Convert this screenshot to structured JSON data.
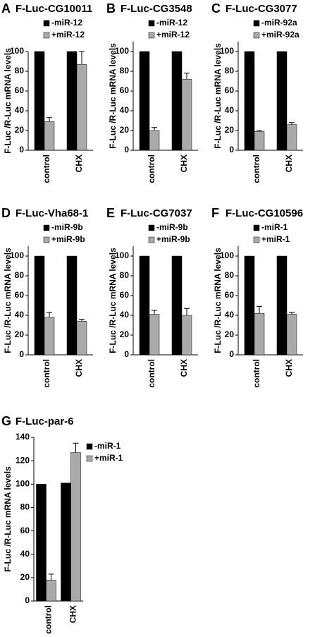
{
  "chart_data": [
    {
      "type": "bar",
      "label": "A",
      "title": "F-Luc-CG10011",
      "y_label": "F-Luc /R-Luc mRNA levels",
      "categories": [
        "control",
        "CHX"
      ],
      "series": [
        {
          "name": "-miR-12",
          "color": "#000000",
          "values": [
            100,
            100
          ]
        },
        {
          "name": "+miR-12",
          "color": "#aaaaaa",
          "values": [
            29,
            87
          ],
          "errors": [
            4,
            13
          ]
        }
      ],
      "ylim": [
        0,
        100
      ],
      "yticks": [
        0,
        20,
        40,
        60,
        80,
        100
      ]
    },
    {
      "type": "bar",
      "label": "B",
      "title": "F-Luc-CG3548",
      "y_label": "F-Luc /R-Luc mRNA levels",
      "categories": [
        "control",
        "CHX"
      ],
      "series": [
        {
          "name": "-miR-12",
          "color": "#000000",
          "values": [
            100,
            100
          ]
        },
        {
          "name": "+miR-12",
          "color": "#aaaaaa",
          "values": [
            20,
            72
          ],
          "errors": [
            3,
            6
          ]
        }
      ],
      "ylim": [
        0,
        110
      ],
      "yticks": [
        0,
        20,
        40,
        60,
        80,
        100
      ]
    },
    {
      "type": "bar",
      "label": "C",
      "title": "F-Luc-CG3077",
      "y_label": "F-Luc /R-Luc mRNA levels",
      "categories": [
        "control",
        "CHX"
      ],
      "series": [
        {
          "name": "-miR-92a",
          "color": "#000000",
          "values": [
            100,
            100
          ]
        },
        {
          "name": "+miR-92a",
          "color": "#aaaaaa",
          "values": [
            19,
            26
          ],
          "errors": [
            1,
            2
          ]
        }
      ],
      "ylim": [
        0,
        110
      ],
      "yticks": [
        0,
        20,
        40,
        60,
        80,
        100
      ]
    },
    {
      "type": "bar",
      "label": "D",
      "title": "F-Luc-Vha68-1",
      "y_label": "F-Luc /R-Luc mRNA levels",
      "categories": [
        "control",
        "CHX"
      ],
      "series": [
        {
          "name": "-miR-9b",
          "color": "#000000",
          "values": [
            100,
            100
          ]
        },
        {
          "name": "+miR-9b",
          "color": "#aaaaaa",
          "values": [
            38,
            34
          ],
          "errors": [
            5,
            2
          ]
        }
      ],
      "ylim": [
        0,
        110
      ],
      "yticks": [
        0,
        20,
        40,
        60,
        80,
        100
      ]
    },
    {
      "type": "bar",
      "label": "E",
      "title": "F-Luc-CG7037",
      "y_label": "F-Luc /R-Luc mRNA levels",
      "categories": [
        "control",
        "CHX"
      ],
      "series": [
        {
          "name": "-miR-9b",
          "color": "#000000",
          "values": [
            100,
            100
          ]
        },
        {
          "name": "+miR-9b",
          "color": "#aaaaaa",
          "values": [
            41,
            40
          ],
          "errors": [
            4,
            7
          ]
        }
      ],
      "ylim": [
        0,
        110
      ],
      "yticks": [
        0,
        20,
        40,
        60,
        80,
        100
      ]
    },
    {
      "type": "bar",
      "label": "F",
      "title": "F-Luc-CG10596",
      "y_label": "F-Luc /R-Luc mRNA levels",
      "categories": [
        "control",
        "CHX"
      ],
      "series": [
        {
          "name": "-miR-1",
          "color": "#000000",
          "values": [
            100,
            100
          ]
        },
        {
          "name": "+miR-1",
          "color": "#aaaaaa",
          "values": [
            42,
            41
          ],
          "errors": [
            7,
            2
          ]
        }
      ],
      "ylim": [
        0,
        110
      ],
      "yticks": [
        0,
        20,
        40,
        60,
        80,
        100
      ]
    },
    {
      "type": "bar",
      "label": "G",
      "title": "F-Luc-par-6",
      "y_label": "F-Luc /R-Luc mRNA levels",
      "categories": [
        "control",
        "CHX"
      ],
      "series": [
        {
          "name": "-miR-1",
          "color": "#000000",
          "values": [
            100,
            101
          ]
        },
        {
          "name": "+miR-1",
          "color": "#aaaaaa",
          "values": [
            18,
            127
          ],
          "errors": [
            5,
            8
          ]
        }
      ],
      "ylim": [
        0,
        140
      ],
      "yticks": [
        0,
        20,
        40,
        60,
        80,
        100,
        120,
        140
      ]
    }
  ]
}
